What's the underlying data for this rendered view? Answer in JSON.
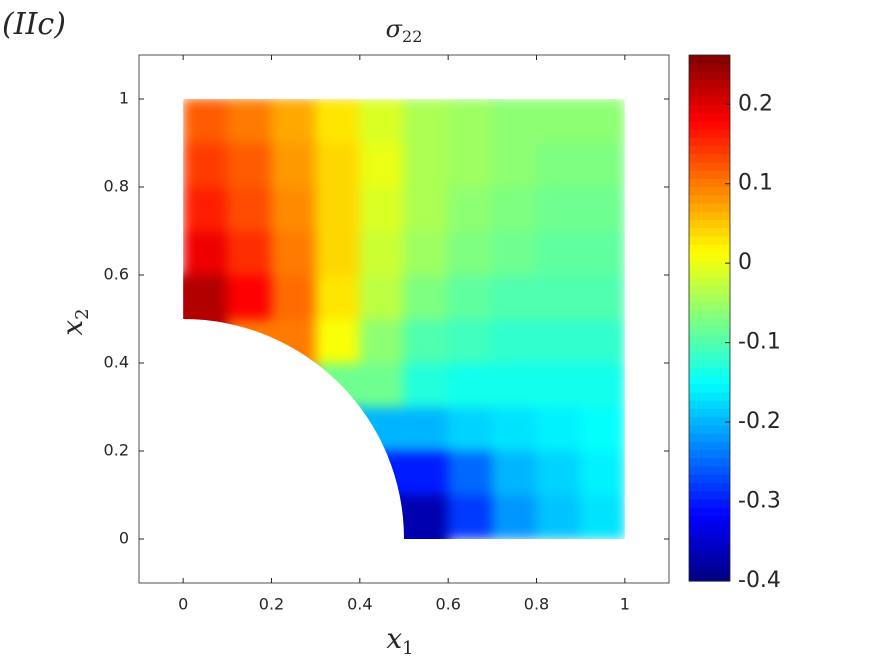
{
  "chart_data": {
    "type": "field",
    "panel_label": "(IIc)",
    "title": {
      "symbol": "σ",
      "subscript": "22"
    },
    "x_label": {
      "symbol": "x",
      "subscript": "1"
    },
    "y_label": {
      "symbol": "x",
      "subscript": "2"
    },
    "x": [
      0.05,
      0.15,
      0.25,
      0.35,
      0.45,
      0.55,
      0.65,
      0.75,
      0.85,
      0.95
    ],
    "y": [
      0.05,
      0.15,
      0.25,
      0.35,
      0.45,
      0.55,
      0.65,
      0.75,
      0.85,
      0.95
    ],
    "z": [
      [
        null,
        null,
        null,
        null,
        null,
        -0.37,
        -0.28,
        -0.22,
        -0.19,
        -0.17
      ],
      [
        null,
        null,
        null,
        null,
        null,
        -0.3,
        -0.25,
        -0.2,
        -0.18,
        -0.16
      ],
      [
        null,
        null,
        null,
        null,
        -0.2,
        -0.2,
        -0.18,
        -0.17,
        -0.16,
        -0.15
      ],
      [
        null,
        null,
        null,
        null,
        -0.08,
        -0.13,
        -0.14,
        -0.14,
        -0.14,
        -0.14
      ],
      [
        null,
        null,
        0.1,
        0.01,
        -0.06,
        -0.1,
        -0.11,
        -0.12,
        -0.12,
        -0.12
      ],
      [
        0.23,
        0.18,
        0.11,
        0.03,
        -0.03,
        -0.07,
        -0.09,
        -0.1,
        -0.1,
        -0.1
      ],
      [
        0.19,
        0.15,
        0.1,
        0.04,
        -0.02,
        -0.05,
        -0.07,
        -0.08,
        -0.09,
        -0.09
      ],
      [
        0.16,
        0.13,
        0.09,
        0.04,
        -0.01,
        -0.04,
        -0.06,
        -0.07,
        -0.08,
        -0.08
      ],
      [
        0.14,
        0.12,
        0.08,
        0.04,
        0.0,
        -0.04,
        -0.05,
        -0.06,
        -0.07,
        -0.07
      ],
      [
        0.12,
        0.1,
        0.07,
        0.03,
        -0.01,
        -0.04,
        -0.05,
        -0.06,
        -0.06,
        -0.06
      ]
    ],
    "hole_radius": 0.5,
    "colormap": "jet",
    "clim": [
      -0.4,
      0.262
    ],
    "xlim": [
      -0.1,
      1.1
    ],
    "ylim": [
      -0.1,
      1.1
    ],
    "xticks": [
      0,
      0.2,
      0.4,
      0.6,
      0.8,
      1
    ],
    "yticks": [
      0,
      0.2,
      0.4,
      0.6,
      0.8,
      1
    ],
    "cticks": [
      -0.4,
      -0.3,
      -0.2,
      -0.1,
      0,
      0.1,
      0.2
    ]
  }
}
